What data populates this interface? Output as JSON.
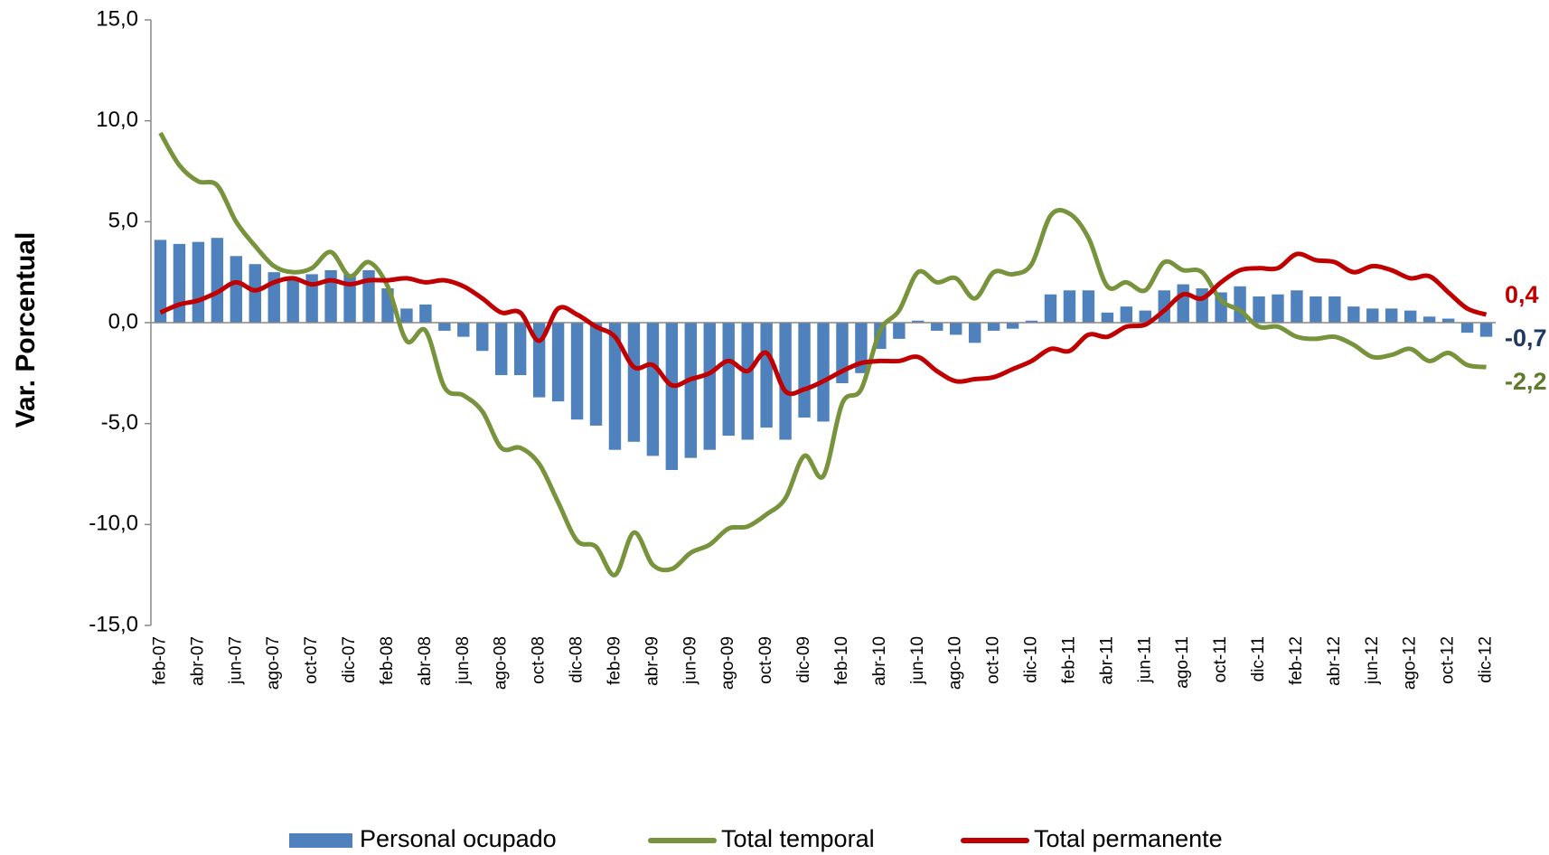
{
  "chart_data": {
    "type": "combo",
    "y_axis_label": "Var. Porcentual",
    "categories": [
      "feb-07",
      null,
      "abr-07",
      null,
      "jun-07",
      null,
      "ago-07",
      null,
      "oct-07",
      null,
      "dic-07",
      null,
      "feb-08",
      null,
      "abr-08",
      null,
      "jun-08",
      null,
      "ago-08",
      null,
      "oct-08",
      null,
      "dic-08",
      null,
      "feb-09",
      null,
      "abr-09",
      null,
      "jun-09",
      null,
      "ago-09",
      null,
      "oct-09",
      null,
      "dic-09",
      null,
      "feb-10",
      null,
      "abr-10",
      null,
      "jun-10",
      null,
      "ago-10",
      null,
      "oct-10",
      null,
      "dic-10",
      null,
      "feb-11",
      null,
      "abr-11",
      null,
      "jun-11",
      null,
      "ago-11",
      null,
      "oct-11",
      null,
      "dic-11",
      null,
      "feb-12",
      null,
      "abr-12",
      null,
      "jun-12",
      null,
      "ago-12",
      null,
      "oct-12",
      null,
      "dic-12"
    ],
    "ylim": [
      -15,
      15
    ],
    "yticks": [
      {
        "value": -15,
        "label": "-15,0"
      },
      {
        "value": -10,
        "label": "-10,0"
      },
      {
        "value": -5,
        "label": "-5,0"
      },
      {
        "value": 0,
        "label": "0,0"
      },
      {
        "value": 5,
        "label": "5,0"
      },
      {
        "value": 10,
        "label": "10,0"
      },
      {
        "value": 15,
        "label": "15,0"
      }
    ],
    "grid": false,
    "legend": "bottom",
    "series": [
      {
        "name": "Personal ocupado",
        "type": "bar",
        "color": "#4f81bd",
        "label_color": "#1f3864",
        "values": [
          4.1,
          3.9,
          4.0,
          4.2,
          3.3,
          2.9,
          2.5,
          2.2,
          2.4,
          2.6,
          2.4,
          2.6,
          1.7,
          0.7,
          0.9,
          -0.4,
          -0.7,
          -1.4,
          -2.6,
          -2.6,
          -3.7,
          -3.9,
          -4.8,
          -5.1,
          -6.3,
          -5.9,
          -6.6,
          -7.3,
          -6.7,
          -6.3,
          -5.6,
          -5.8,
          -5.2,
          -5.8,
          -4.7,
          -4.9,
          -3.0,
          -2.5,
          -1.3,
          -0.8,
          0.1,
          -0.4,
          -0.6,
          -1.0,
          -0.4,
          -0.3,
          0.1,
          1.4,
          1.6,
          1.6,
          0.5,
          0.8,
          0.6,
          1.6,
          1.9,
          1.7,
          1.5,
          1.8,
          1.3,
          1.4,
          1.6,
          1.3,
          1.3,
          0.8,
          0.7,
          0.7,
          0.6,
          0.3,
          0.2,
          -0.5,
          -0.7
        ],
        "value_labels": [
          null,
          null,
          null,
          null,
          null,
          null,
          null,
          null,
          null,
          null,
          null,
          null,
          null,
          null,
          null,
          null,
          null,
          null,
          null,
          null,
          null,
          null,
          null,
          null,
          null,
          null,
          null,
          null,
          null,
          null,
          null,
          null,
          null,
          null,
          null,
          null,
          null,
          null,
          null,
          null,
          null,
          null,
          null,
          null,
          null,
          null,
          null,
          null,
          null,
          null,
          null,
          null,
          null,
          null,
          null,
          null,
          null,
          null,
          null,
          null,
          null,
          null,
          null,
          null,
          null,
          null,
          null,
          null,
          null,
          null,
          "-0,7"
        ]
      },
      {
        "name": "Total temporal",
        "type": "line",
        "color": "#77933c",
        "label_color": "#5f7a2a",
        "values": [
          9.4,
          7.8,
          7.0,
          6.8,
          5.0,
          3.8,
          2.8,
          2.5,
          2.7,
          3.5,
          2.3,
          3.0,
          1.8,
          -0.9,
          -0.4,
          -3.2,
          -3.6,
          -4.4,
          -6.2,
          -6.2,
          -7.0,
          -8.9,
          -10.8,
          -11.1,
          -12.5,
          -10.4,
          -12.0,
          -12.2,
          -11.4,
          -11.0,
          -10.2,
          -10.1,
          -9.5,
          -8.7,
          -6.6,
          -7.6,
          -4.0,
          -3.3,
          -0.4,
          0.6,
          2.5,
          2.0,
          2.2,
          1.2,
          2.5,
          2.4,
          2.9,
          5.3,
          5.4,
          4.2,
          1.8,
          2.0,
          1.6,
          3.0,
          2.6,
          2.5,
          1.1,
          0.6,
          -0.2,
          -0.2,
          -0.7,
          -0.8,
          -0.7,
          -1.1,
          -1.7,
          -1.6,
          -1.3,
          -1.9,
          -1.5,
          -2.1,
          -2.2
        ],
        "value_labels": [
          null,
          null,
          null,
          null,
          null,
          null,
          null,
          null,
          null,
          null,
          null,
          null,
          null,
          null,
          null,
          null,
          null,
          null,
          null,
          null,
          null,
          null,
          null,
          null,
          null,
          null,
          null,
          null,
          null,
          null,
          null,
          null,
          null,
          null,
          null,
          null,
          null,
          null,
          null,
          null,
          null,
          null,
          null,
          null,
          null,
          null,
          null,
          null,
          null,
          null,
          null,
          null,
          null,
          null,
          null,
          null,
          null,
          null,
          null,
          null,
          null,
          null,
          null,
          null,
          null,
          null,
          null,
          null,
          null,
          null,
          "-2,2"
        ]
      },
      {
        "name": "Total permanente",
        "type": "line",
        "color": "#c00000",
        "label_color": "#c00000",
        "values": [
          0.5,
          0.9,
          1.1,
          1.5,
          2.0,
          1.6,
          2.0,
          2.2,
          1.9,
          2.1,
          1.9,
          2.1,
          2.1,
          2.2,
          2.0,
          2.1,
          1.8,
          1.2,
          0.5,
          0.5,
          -0.9,
          0.7,
          0.4,
          -0.2,
          -0.7,
          -2.2,
          -2.1,
          -3.1,
          -2.8,
          -2.5,
          -1.9,
          -2.4,
          -1.5,
          -3.4,
          -3.3,
          -2.9,
          -2.4,
          -2.0,
          -1.9,
          -1.9,
          -1.7,
          -2.4,
          -2.9,
          -2.8,
          -2.7,
          -2.3,
          -1.9,
          -1.3,
          -1.4,
          -0.6,
          -0.7,
          -0.2,
          -0.1,
          0.6,
          1.4,
          1.2,
          2.0,
          2.6,
          2.7,
          2.7,
          3.4,
          3.1,
          3.0,
          2.5,
          2.8,
          2.6,
          2.2,
          2.3,
          1.5,
          0.7,
          0.4
        ],
        "value_labels": [
          null,
          null,
          null,
          null,
          null,
          null,
          null,
          null,
          null,
          null,
          null,
          null,
          null,
          null,
          null,
          null,
          null,
          null,
          null,
          null,
          null,
          null,
          null,
          null,
          null,
          null,
          null,
          null,
          null,
          null,
          null,
          null,
          null,
          null,
          null,
          null,
          null,
          null,
          null,
          null,
          null,
          null,
          null,
          null,
          null,
          null,
          null,
          null,
          null,
          null,
          null,
          null,
          null,
          null,
          null,
          null,
          null,
          null,
          null,
          null,
          null,
          null,
          null,
          null,
          null,
          null,
          null,
          null,
          null,
          null,
          "0,4"
        ]
      }
    ]
  }
}
